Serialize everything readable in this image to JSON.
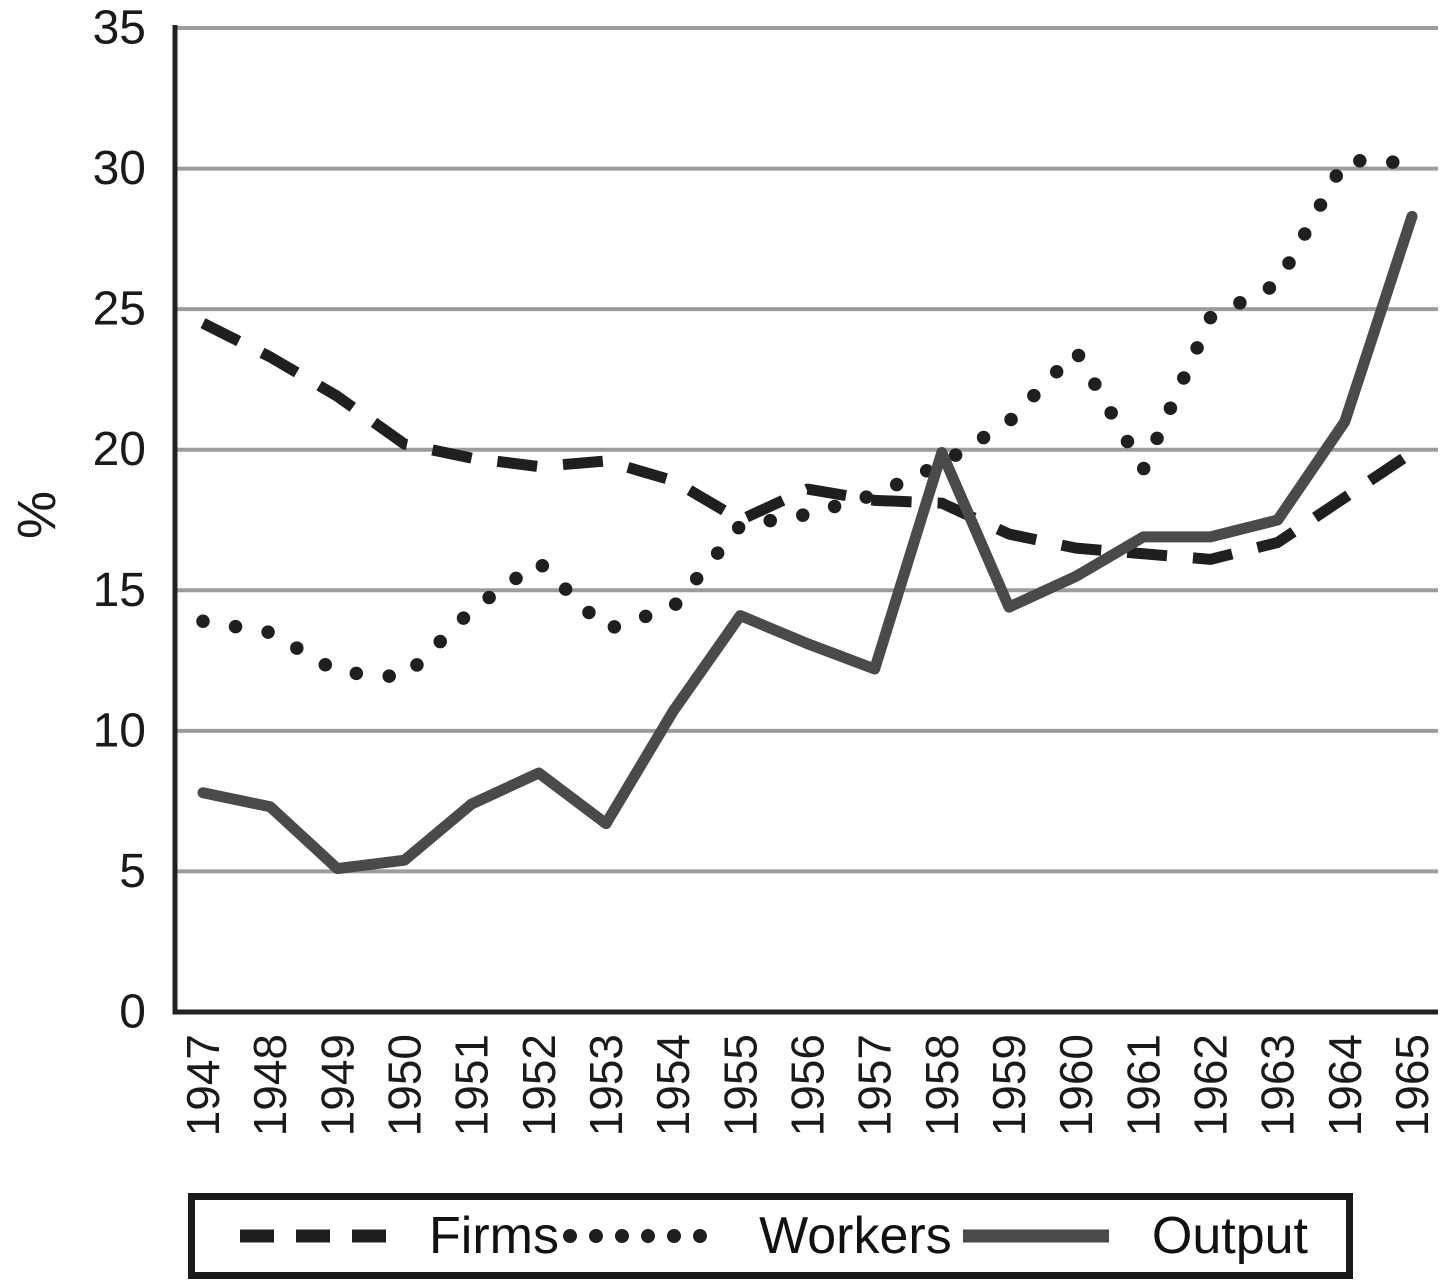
{
  "chart_data": {
    "type": "line",
    "title": "",
    "xlabel": "",
    "ylabel": "%",
    "x_tick_labels": [
      "1947",
      "1948",
      "1949",
      "1950",
      "1951",
      "1952",
      "1953",
      "1954",
      "1955",
      "1956",
      "1957",
      "1958",
      "1959",
      "1960",
      "1961",
      "1962",
      "1963",
      "1964",
      "1965"
    ],
    "y_ticks": [
      0,
      5,
      10,
      15,
      20,
      25,
      30,
      35
    ],
    "ylim": [
      0,
      35
    ],
    "grid": "horizontal",
    "legend_position": "bottom",
    "series": [
      {
        "name": "Firms",
        "style": "dashed",
        "color": "#1f1f1f",
        "values": [
          24.5,
          23.3,
          21.9,
          20.2,
          19.7,
          19.4,
          19.6,
          18.9,
          17.5,
          18.6,
          18.2,
          18.1,
          17.0,
          16.5,
          16.3,
          16.1,
          16.7,
          18.3,
          19.9
        ]
      },
      {
        "name": "Workers",
        "style": "dotted",
        "color": "#1f1f1f",
        "values": [
          13.9,
          13.5,
          12.1,
          11.9,
          14.3,
          16.0,
          13.6,
          14.4,
          17.3,
          17.7,
          18.4,
          19.5,
          21.0,
          23.5,
          19.3,
          24.7,
          25.9,
          30.3,
          30.2
        ]
      },
      {
        "name": "Output",
        "style": "solid",
        "color": "#4a4a4a",
        "values": [
          7.8,
          7.3,
          5.1,
          5.4,
          7.4,
          8.5,
          6.7,
          10.7,
          14.1,
          13.1,
          12.2,
          19.9,
          14.4,
          15.5,
          16.9,
          16.9,
          17.5,
          21.0,
          28.3
        ]
      }
    ],
    "colors": {
      "gridline": "#9c9c9c",
      "axis": "#222222",
      "tick_label": "#1a1a1a"
    }
  }
}
